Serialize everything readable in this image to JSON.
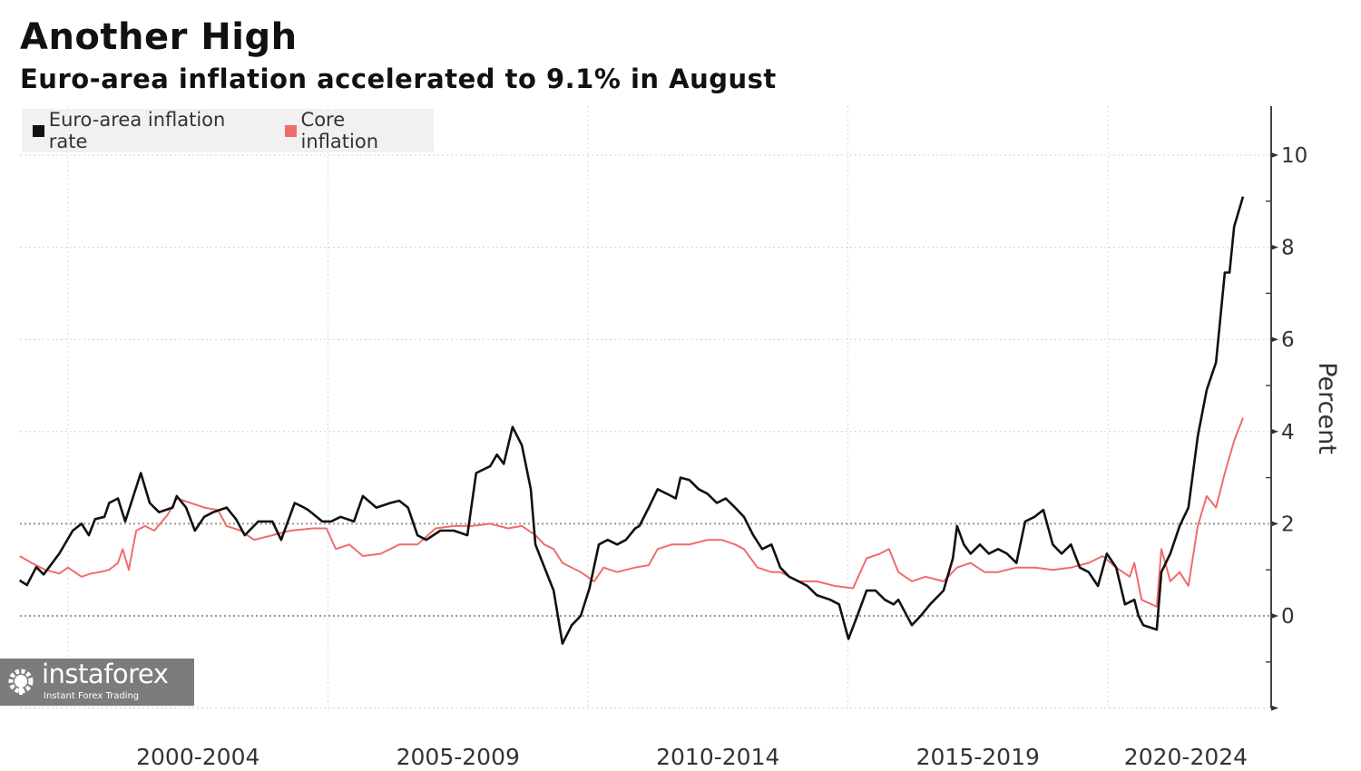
{
  "title": "Another High",
  "subtitle": "Euro-area inflation accelerated to 9.1% in August",
  "watermark": {
    "name": "instaforex",
    "tagline": "Instant Forex Trading"
  },
  "chart_data": {
    "type": "line",
    "title": "Another High",
    "subtitle": "Euro-area inflation accelerated to 9.1% in August",
    "ylabel": "Percent",
    "xlabel": "",
    "ylim": [
      -2,
      11
    ],
    "xlim": [
      1999.0,
      2024.2
    ],
    "yticks": [
      0,
      2,
      4,
      6,
      8,
      10
    ],
    "yticks_minor": [
      -1,
      1,
      3,
      5,
      7,
      9
    ],
    "xgrid": [
      2000,
      2005,
      2010,
      2015,
      2020
    ],
    "xtick_labels": [
      {
        "label": "2000-2004",
        "center": 2002.5
      },
      {
        "label": "2005-2009",
        "center": 2007.5
      },
      {
        "label": "2010-2014",
        "center": 2012.5
      },
      {
        "label": "2015-2019",
        "center": 2017.5
      },
      {
        "label": "2020-2024",
        "center": 2021.5
      }
    ],
    "legend_position": "top-left",
    "series": [
      {
        "name": "Euro-area inflation rate",
        "color": "#111111",
        "points": [
          [
            1999.07,
            0.77
          ],
          [
            1999.21,
            0.67
          ],
          [
            1999.39,
            1.06
          ],
          [
            1999.53,
            0.9
          ],
          [
            1999.83,
            1.35
          ],
          [
            2000.09,
            1.85
          ],
          [
            2000.26,
            2.0
          ],
          [
            2000.4,
            1.75
          ],
          [
            2000.52,
            2.1
          ],
          [
            2000.7,
            2.15
          ],
          [
            2000.79,
            2.45
          ],
          [
            2000.96,
            2.55
          ],
          [
            2001.1,
            2.05
          ],
          [
            2001.27,
            2.65
          ],
          [
            2001.4,
            3.1
          ],
          [
            2001.57,
            2.45
          ],
          [
            2001.75,
            2.25
          ],
          [
            2002.01,
            2.35
          ],
          [
            2002.09,
            2.6
          ],
          [
            2002.27,
            2.35
          ],
          [
            2002.44,
            1.85
          ],
          [
            2002.62,
            2.15
          ],
          [
            2002.79,
            2.25
          ],
          [
            2003.05,
            2.35
          ],
          [
            2003.23,
            2.1
          ],
          [
            2003.4,
            1.75
          ],
          [
            2003.66,
            2.05
          ],
          [
            2003.93,
            2.05
          ],
          [
            2004.1,
            1.65
          ],
          [
            2004.36,
            2.45
          ],
          [
            2004.54,
            2.35
          ],
          [
            2004.62,
            2.3
          ],
          [
            2004.89,
            2.05
          ],
          [
            2005.06,
            2.05
          ],
          [
            2005.24,
            2.15
          ],
          [
            2005.5,
            2.05
          ],
          [
            2005.67,
            2.6
          ],
          [
            2005.93,
            2.35
          ],
          [
            2006.2,
            2.45
          ],
          [
            2006.37,
            2.5
          ],
          [
            2006.54,
            2.35
          ],
          [
            2006.72,
            1.75
          ],
          [
            2006.89,
            1.65
          ],
          [
            2007.16,
            1.85
          ],
          [
            2007.42,
            1.85
          ],
          [
            2007.68,
            1.75
          ],
          [
            2007.85,
            3.1
          ],
          [
            2008.12,
            3.25
          ],
          [
            2008.25,
            3.5
          ],
          [
            2008.38,
            3.3
          ],
          [
            2008.55,
            4.1
          ],
          [
            2008.73,
            3.7
          ],
          [
            2008.9,
            2.75
          ],
          [
            2008.99,
            1.55
          ],
          [
            2009.13,
            1.15
          ],
          [
            2009.34,
            0.55
          ],
          [
            2009.51,
            -0.6
          ],
          [
            2009.69,
            -0.2
          ],
          [
            2009.86,
            0.0
          ],
          [
            2010.03,
            0.6
          ],
          [
            2010.21,
            1.55
          ],
          [
            2010.38,
            1.65
          ],
          [
            2010.56,
            1.55
          ],
          [
            2010.73,
            1.65
          ],
          [
            2010.91,
            1.9
          ],
          [
            2010.99,
            1.95
          ],
          [
            2011.17,
            2.35
          ],
          [
            2011.34,
            2.75
          ],
          [
            2011.52,
            2.65
          ],
          [
            2011.69,
            2.55
          ],
          [
            2011.78,
            3.0
          ],
          [
            2011.95,
            2.95
          ],
          [
            2012.13,
            2.75
          ],
          [
            2012.3,
            2.65
          ],
          [
            2012.48,
            2.45
          ],
          [
            2012.65,
            2.55
          ],
          [
            2012.83,
            2.35
          ],
          [
            2013.0,
            2.15
          ],
          [
            2013.18,
            1.75
          ],
          [
            2013.35,
            1.45
          ],
          [
            2013.53,
            1.55
          ],
          [
            2013.7,
            1.05
          ],
          [
            2013.87,
            0.85
          ],
          [
            2014.05,
            0.75
          ],
          [
            2014.22,
            0.65
          ],
          [
            2014.4,
            0.45
          ],
          [
            2014.66,
            0.35
          ],
          [
            2014.83,
            0.25
          ],
          [
            2015.01,
            -0.5
          ],
          [
            2015.18,
            0.0
          ],
          [
            2015.36,
            0.55
          ],
          [
            2015.53,
            0.55
          ],
          [
            2015.71,
            0.35
          ],
          [
            2015.88,
            0.25
          ],
          [
            2015.97,
            0.35
          ],
          [
            2016.23,
            -0.2
          ],
          [
            2016.4,
            0.0
          ],
          [
            2016.58,
            0.25
          ],
          [
            2016.84,
            0.55
          ],
          [
            2017.02,
            1.25
          ],
          [
            2017.1,
            1.95
          ],
          [
            2017.23,
            1.55
          ],
          [
            2017.36,
            1.35
          ],
          [
            2017.54,
            1.55
          ],
          [
            2017.71,
            1.35
          ],
          [
            2017.89,
            1.45
          ],
          [
            2018.06,
            1.35
          ],
          [
            2018.24,
            1.15
          ],
          [
            2018.41,
            2.05
          ],
          [
            2018.59,
            2.15
          ],
          [
            2018.76,
            2.3
          ],
          [
            2018.94,
            1.55
          ],
          [
            2019.11,
            1.35
          ],
          [
            2019.29,
            1.55
          ],
          [
            2019.46,
            1.05
          ],
          [
            2019.63,
            0.95
          ],
          [
            2019.81,
            0.65
          ],
          [
            2019.98,
            1.35
          ],
          [
            2020.16,
            1.05
          ],
          [
            2020.33,
            0.25
          ],
          [
            2020.51,
            0.35
          ],
          [
            2020.59,
            0.0
          ],
          [
            2020.68,
            -0.2
          ],
          [
            2020.94,
            -0.3
          ],
          [
            2021.03,
            0.95
          ],
          [
            2021.2,
            1.35
          ],
          [
            2021.38,
            1.95
          ],
          [
            2021.55,
            2.35
          ],
          [
            2021.73,
            3.9
          ],
          [
            2021.9,
            4.9
          ],
          [
            2022.08,
            5.5
          ],
          [
            2022.25,
            7.45
          ],
          [
            2022.34,
            7.45
          ],
          [
            2022.43,
            8.45
          ],
          [
            2022.6,
            9.1
          ]
        ]
      },
      {
        "name": "Core inflation",
        "color": "#f26b6b",
        "points": [
          [
            1999.07,
            1.3
          ],
          [
            1999.3,
            1.15
          ],
          [
            1999.56,
            1.0
          ],
          [
            1999.83,
            0.92
          ],
          [
            2000.0,
            1.05
          ],
          [
            2000.26,
            0.85
          ],
          [
            2000.44,
            0.92
          ],
          [
            2000.61,
            0.95
          ],
          [
            2000.79,
            1.0
          ],
          [
            2000.96,
            1.15
          ],
          [
            2001.05,
            1.45
          ],
          [
            2001.17,
            1.0
          ],
          [
            2001.31,
            1.85
          ],
          [
            2001.48,
            1.95
          ],
          [
            2001.66,
            1.85
          ],
          [
            2001.92,
            2.2
          ],
          [
            2002.09,
            2.55
          ],
          [
            2002.36,
            2.45
          ],
          [
            2002.62,
            2.35
          ],
          [
            2002.88,
            2.3
          ],
          [
            2003.05,
            1.95
          ],
          [
            2003.32,
            1.85
          ],
          [
            2003.58,
            1.65
          ],
          [
            2003.93,
            1.75
          ],
          [
            2004.28,
            1.85
          ],
          [
            2004.71,
            1.9
          ],
          [
            2004.97,
            1.9
          ],
          [
            2005.15,
            1.45
          ],
          [
            2005.41,
            1.55
          ],
          [
            2005.67,
            1.3
          ],
          [
            2006.02,
            1.35
          ],
          [
            2006.37,
            1.55
          ],
          [
            2006.72,
            1.55
          ],
          [
            2007.07,
            1.9
          ],
          [
            2007.42,
            1.95
          ],
          [
            2007.77,
            1.95
          ],
          [
            2008.12,
            2.0
          ],
          [
            2008.46,
            1.9
          ],
          [
            2008.73,
            1.95
          ],
          [
            2008.99,
            1.75
          ],
          [
            2009.16,
            1.55
          ],
          [
            2009.34,
            1.45
          ],
          [
            2009.51,
            1.15
          ],
          [
            2009.86,
            0.95
          ],
          [
            2010.12,
            0.75
          ],
          [
            2010.3,
            1.05
          ],
          [
            2010.56,
            0.95
          ],
          [
            2010.91,
            1.05
          ],
          [
            2011.17,
            1.1
          ],
          [
            2011.34,
            1.45
          ],
          [
            2011.61,
            1.55
          ],
          [
            2011.95,
            1.55
          ],
          [
            2012.3,
            1.65
          ],
          [
            2012.57,
            1.65
          ],
          [
            2012.83,
            1.55
          ],
          [
            2013.0,
            1.45
          ],
          [
            2013.26,
            1.05
          ],
          [
            2013.53,
            0.95
          ],
          [
            2013.7,
            0.95
          ],
          [
            2014.05,
            0.75
          ],
          [
            2014.4,
            0.75
          ],
          [
            2014.75,
            0.65
          ],
          [
            2015.1,
            0.6
          ],
          [
            2015.36,
            1.25
          ],
          [
            2015.62,
            1.35
          ],
          [
            2015.79,
            1.45
          ],
          [
            2015.97,
            0.95
          ],
          [
            2016.23,
            0.75
          ],
          [
            2016.49,
            0.85
          ],
          [
            2016.84,
            0.75
          ],
          [
            2017.1,
            1.05
          ],
          [
            2017.36,
            1.15
          ],
          [
            2017.63,
            0.95
          ],
          [
            2017.89,
            0.95
          ],
          [
            2018.24,
            1.05
          ],
          [
            2018.59,
            1.05
          ],
          [
            2018.94,
            1.0
          ],
          [
            2019.29,
            1.05
          ],
          [
            2019.63,
            1.15
          ],
          [
            2019.9,
            1.3
          ],
          [
            2020.16,
            1.05
          ],
          [
            2020.42,
            0.85
          ],
          [
            2020.51,
            1.15
          ],
          [
            2020.65,
            0.35
          ],
          [
            2020.94,
            0.2
          ],
          [
            2021.03,
            1.45
          ],
          [
            2021.2,
            0.75
          ],
          [
            2021.38,
            0.95
          ],
          [
            2021.55,
            0.65
          ],
          [
            2021.73,
            1.95
          ],
          [
            2021.9,
            2.6
          ],
          [
            2022.08,
            2.35
          ],
          [
            2022.25,
            3.1
          ],
          [
            2022.43,
            3.8
          ],
          [
            2022.6,
            4.3
          ]
        ]
      }
    ]
  }
}
